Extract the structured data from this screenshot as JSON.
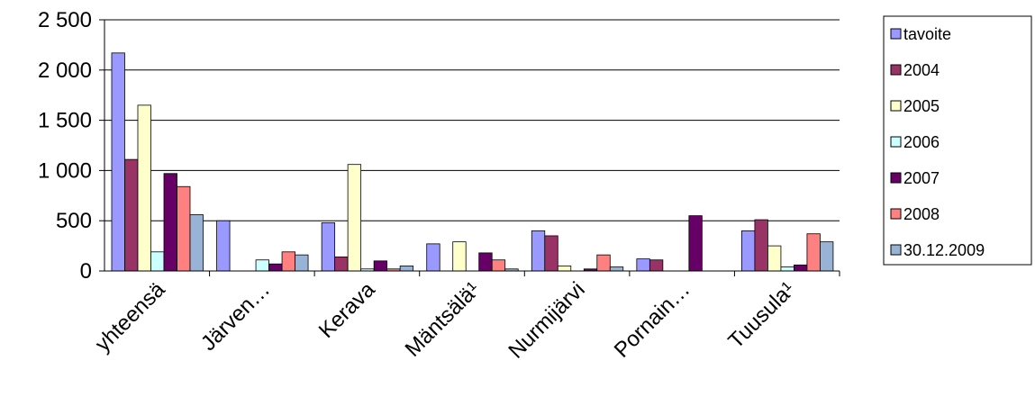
{
  "chart_data": {
    "type": "bar",
    "categories": [
      "yhteensä",
      "Järven…",
      "Kerava",
      "Mäntsälä¹",
      "Nurmijärvi",
      "Pornain…",
      "Tuusula¹"
    ],
    "y_ticks": [
      "0",
      "500",
      "1 000",
      "1 500",
      "2 000",
      "2 500"
    ],
    "ylim": [
      0,
      2500
    ],
    "grid": true,
    "legend_position": "right",
    "series": [
      {
        "name": "tavoite",
        "color": "#9999ff",
        "values": [
          2170,
          500,
          480,
          270,
          400,
          120,
          400
        ]
      },
      {
        "name": "2004",
        "color": "#993366",
        "values": [
          1110,
          0,
          140,
          0,
          350,
          110,
          510
        ]
      },
      {
        "name": "2005",
        "color": "#ffffcc",
        "values": [
          1650,
          0,
          1060,
          290,
          50,
          0,
          250
        ]
      },
      {
        "name": "2006",
        "color": "#ccffff",
        "values": [
          190,
          110,
          20,
          0,
          0,
          0,
          40
        ]
      },
      {
        "name": "2007",
        "color": "#660066",
        "values": [
          970,
          70,
          100,
          180,
          20,
          550,
          60
        ]
      },
      {
        "name": "2008",
        "color": "#ff8080",
        "values": [
          840,
          190,
          20,
          110,
          160,
          0,
          370
        ]
      },
      {
        "name": "30.12.2009",
        "color": "#99b3d6",
        "values": [
          560,
          160,
          50,
          20,
          40,
          0,
          290
        ]
      }
    ]
  }
}
